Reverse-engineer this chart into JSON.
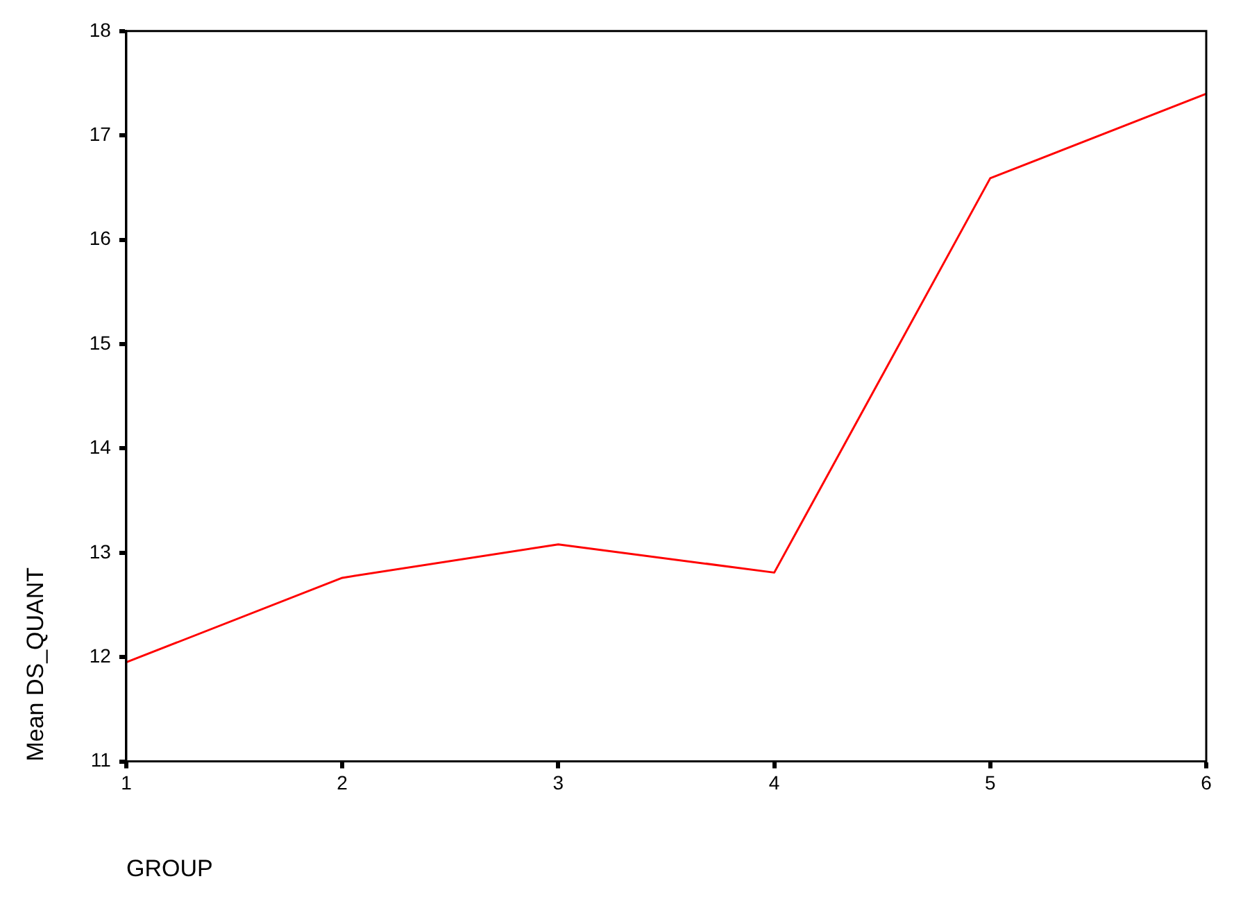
{
  "chart_data": {
    "type": "line",
    "xlabel": "GROUP",
    "ylabel": "Mean DS_QUANT",
    "x": [
      1,
      2,
      3,
      4,
      5,
      6
    ],
    "series": [
      {
        "color": "#ff0000",
        "values": [
          11.95,
          12.76,
          13.08,
          12.81,
          16.59,
          17.4
        ]
      }
    ],
    "xlim": [
      1,
      6
    ],
    "xticks": [
      1,
      2,
      3,
      4,
      5,
      6
    ],
    "ylim": [
      11,
      18
    ],
    "yticks": [
      11,
      12,
      13,
      14,
      15,
      16,
      17,
      18
    ],
    "grid": false,
    "legend": false,
    "marker": "none",
    "line_style": "solid"
  }
}
